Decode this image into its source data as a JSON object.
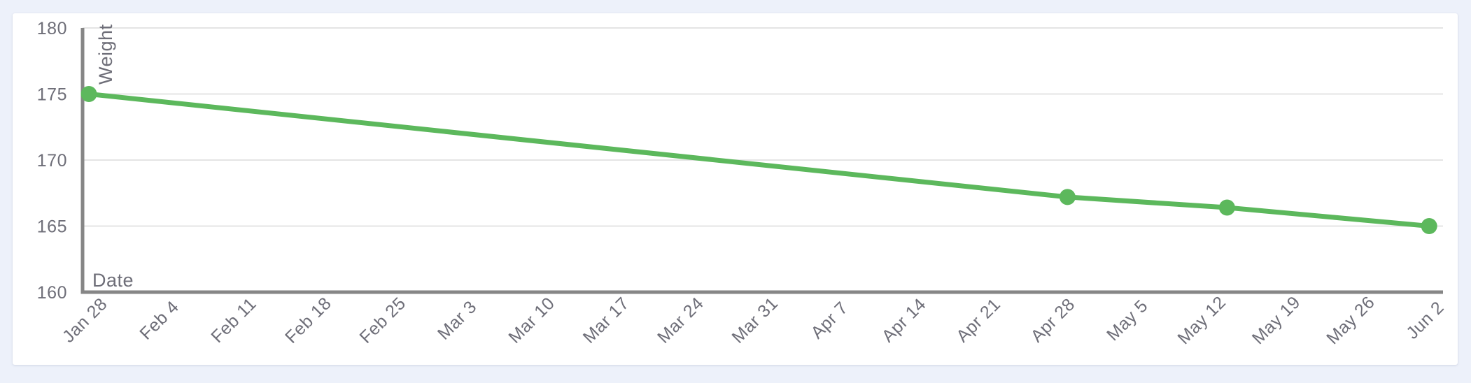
{
  "page": {
    "background_color": "#edf1fa",
    "card_background_color": "#ffffff"
  },
  "chart_data": {
    "type": "line",
    "title": "",
    "xlabel": "Date",
    "ylabel": "Weight",
    "ylim": [
      160,
      180
    ],
    "yticks": [
      160,
      165,
      170,
      175,
      180
    ],
    "x_tick_labels": [
      "Jan 28",
      "Feb 4",
      "Feb 11",
      "Feb 18",
      "Feb 25",
      "Mar 3",
      "Mar 10",
      "Mar 17",
      "Mar 24",
      "Mar 31",
      "Apr 7",
      "Apr 14",
      "Apr 21",
      "Apr 28",
      "May 5",
      "May 12",
      "May 19",
      "May 26",
      "Jun 2"
    ],
    "x_tick_interval_days": 7,
    "x_range_days": [
      0,
      126
    ],
    "grid": "horizontal gridlines only",
    "legend_position": "none",
    "series": [
      {
        "name": "Weight",
        "color": "#5cb85c",
        "points": [
          {
            "date": "Jan 28",
            "x_days": 0,
            "value": 175
          },
          {
            "date": "Apr 29",
            "x_days": 92,
            "value": 167.2
          },
          {
            "date": "May 14",
            "x_days": 107,
            "value": 166.4
          },
          {
            "date": "Jun 2",
            "x_days": 126,
            "value": 165
          }
        ]
      }
    ],
    "colors": {
      "line": "#5cb85c",
      "axis": "#868686",
      "grid": "#e4e4e4",
      "text": "#6e6e78"
    }
  }
}
